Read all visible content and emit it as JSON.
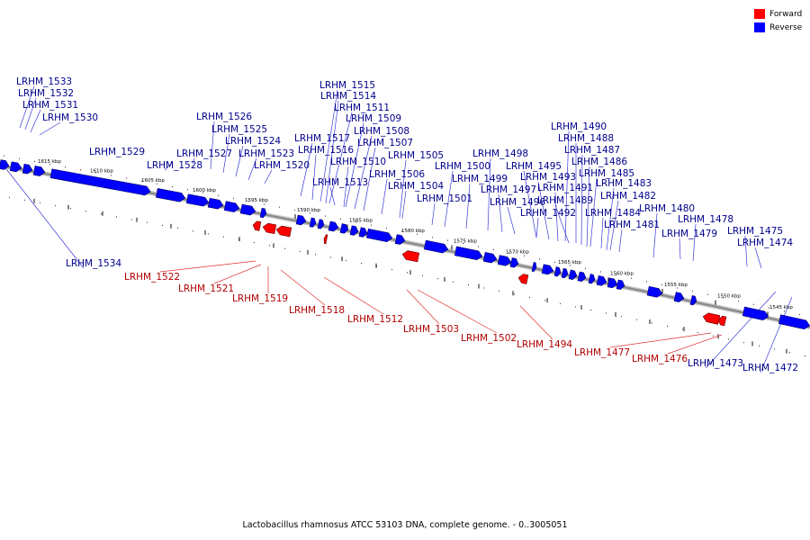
{
  "caption": "Lactobacillus rhamnosus ATCC 53103 DNA, complete genome. - 0..3005051",
  "legend": {
    "forward": {
      "label": "Forward",
      "color": "#ff0000"
    },
    "reverse": {
      "label": "Reverse",
      "color": "#0000ff"
    }
  },
  "colors": {
    "reverse_label": "#00008b",
    "forward_label": "#b00000",
    "leader_reverse": "#3a3ad8",
    "leader_forward": "#e03030",
    "backbone": "#8a8a8a"
  },
  "scale_ticks": [
    "1615 kbp",
    "1610 kbp",
    "1605 kbp",
    "1600 kbp",
    "1595 kbp",
    "1590 kbp",
    "1585 kbp",
    "1580 kbp",
    "1575 kbp",
    "1570 kbp",
    "1565 kbp",
    "1560 kbp",
    "1555 kbp",
    "1550 kbp",
    "1545 kbp"
  ],
  "reverse_genes": [
    "LRHM_1534",
    "LRHM_1533",
    "LRHM_1532",
    "LRHM_1531",
    "LRHM_1530",
    "LRHM_1529",
    "LRHM_1528",
    "LRHM_1527",
    "LRHM_1526",
    "LRHM_1525",
    "LRHM_1524",
    "LRHM_1523",
    "LRHM_1520",
    "LRHM_1517",
    "LRHM_1516",
    "LRHM_1515",
    "LRHM_1514",
    "LRHM_1513",
    "LRHM_1511",
    "LRHM_1510",
    "LRHM_1509",
    "LRHM_1508",
    "LRHM_1507",
    "LRHM_1506",
    "LRHM_1505",
    "LRHM_1504",
    "LRHM_1501",
    "LRHM_1500",
    "LRHM_1499",
    "LRHM_1498",
    "LRHM_1497",
    "LRHM_1496",
    "LRHM_1495",
    "LRHM_1493",
    "LRHM_1492",
    "LRHM_1491",
    "LRHM_1490",
    "LRHM_1489",
    "LRHM_1488",
    "LRHM_1487",
    "LRHM_1486",
    "LRHM_1485",
    "LRHM_1484",
    "LRHM_1483",
    "LRHM_1482",
    "LRHM_1481",
    "LRHM_1480",
    "LRHM_1479",
    "LRHM_1478",
    "LRHM_1475",
    "LRHM_1474",
    "LRHM_1473",
    "LRHM_1472"
  ],
  "forward_genes": [
    "LRHM_1522",
    "LRHM_1521",
    "LRHM_1519",
    "LRHM_1518",
    "LRHM_1512",
    "LRHM_1503",
    "LRHM_1502",
    "LRHM_1494",
    "LRHM_1477",
    "LRHM_1476"
  ]
}
